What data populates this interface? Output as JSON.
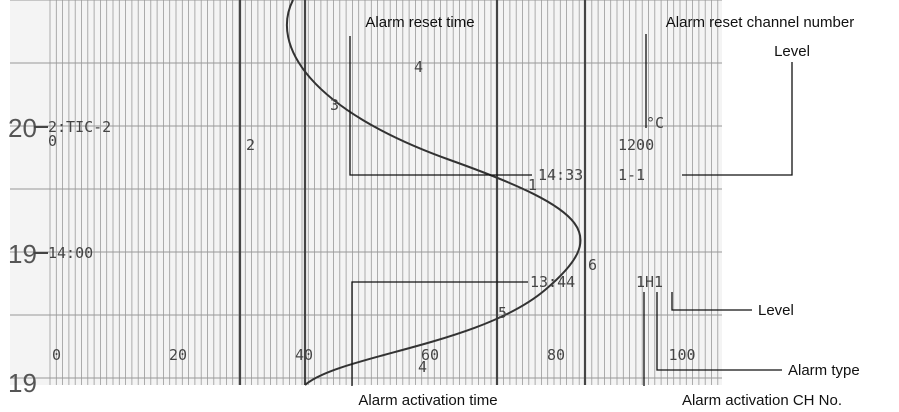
{
  "callouts": {
    "alarm_reset_time": "Alarm reset time",
    "alarm_reset_channel": "Alarm reset channel number",
    "level_top": "Level",
    "level_bottom": "Level",
    "alarm_type": "Alarm type",
    "alarm_activation_time": "Alarm activation time",
    "alarm_activation_ch": "Alarm activation CH No."
  },
  "recorder": {
    "row_labels": [
      "20",
      "19",
      "19"
    ],
    "tag": "2:TIC-2",
    "tag_sub": "0",
    "channel_marks": [
      "2",
      "3",
      "4",
      "1",
      "6",
      "5"
    ],
    "reset_channel": "1200",
    "unit": "°C",
    "reset_time": "14:33",
    "reset_level": "1-1",
    "time_mark": "14:00",
    "activation_time": "13:44",
    "activation_code": "1H1",
    "scale": [
      "0",
      "20",
      "40",
      "60",
      "80",
      "100"
    ],
    "scale_extra": "4"
  }
}
